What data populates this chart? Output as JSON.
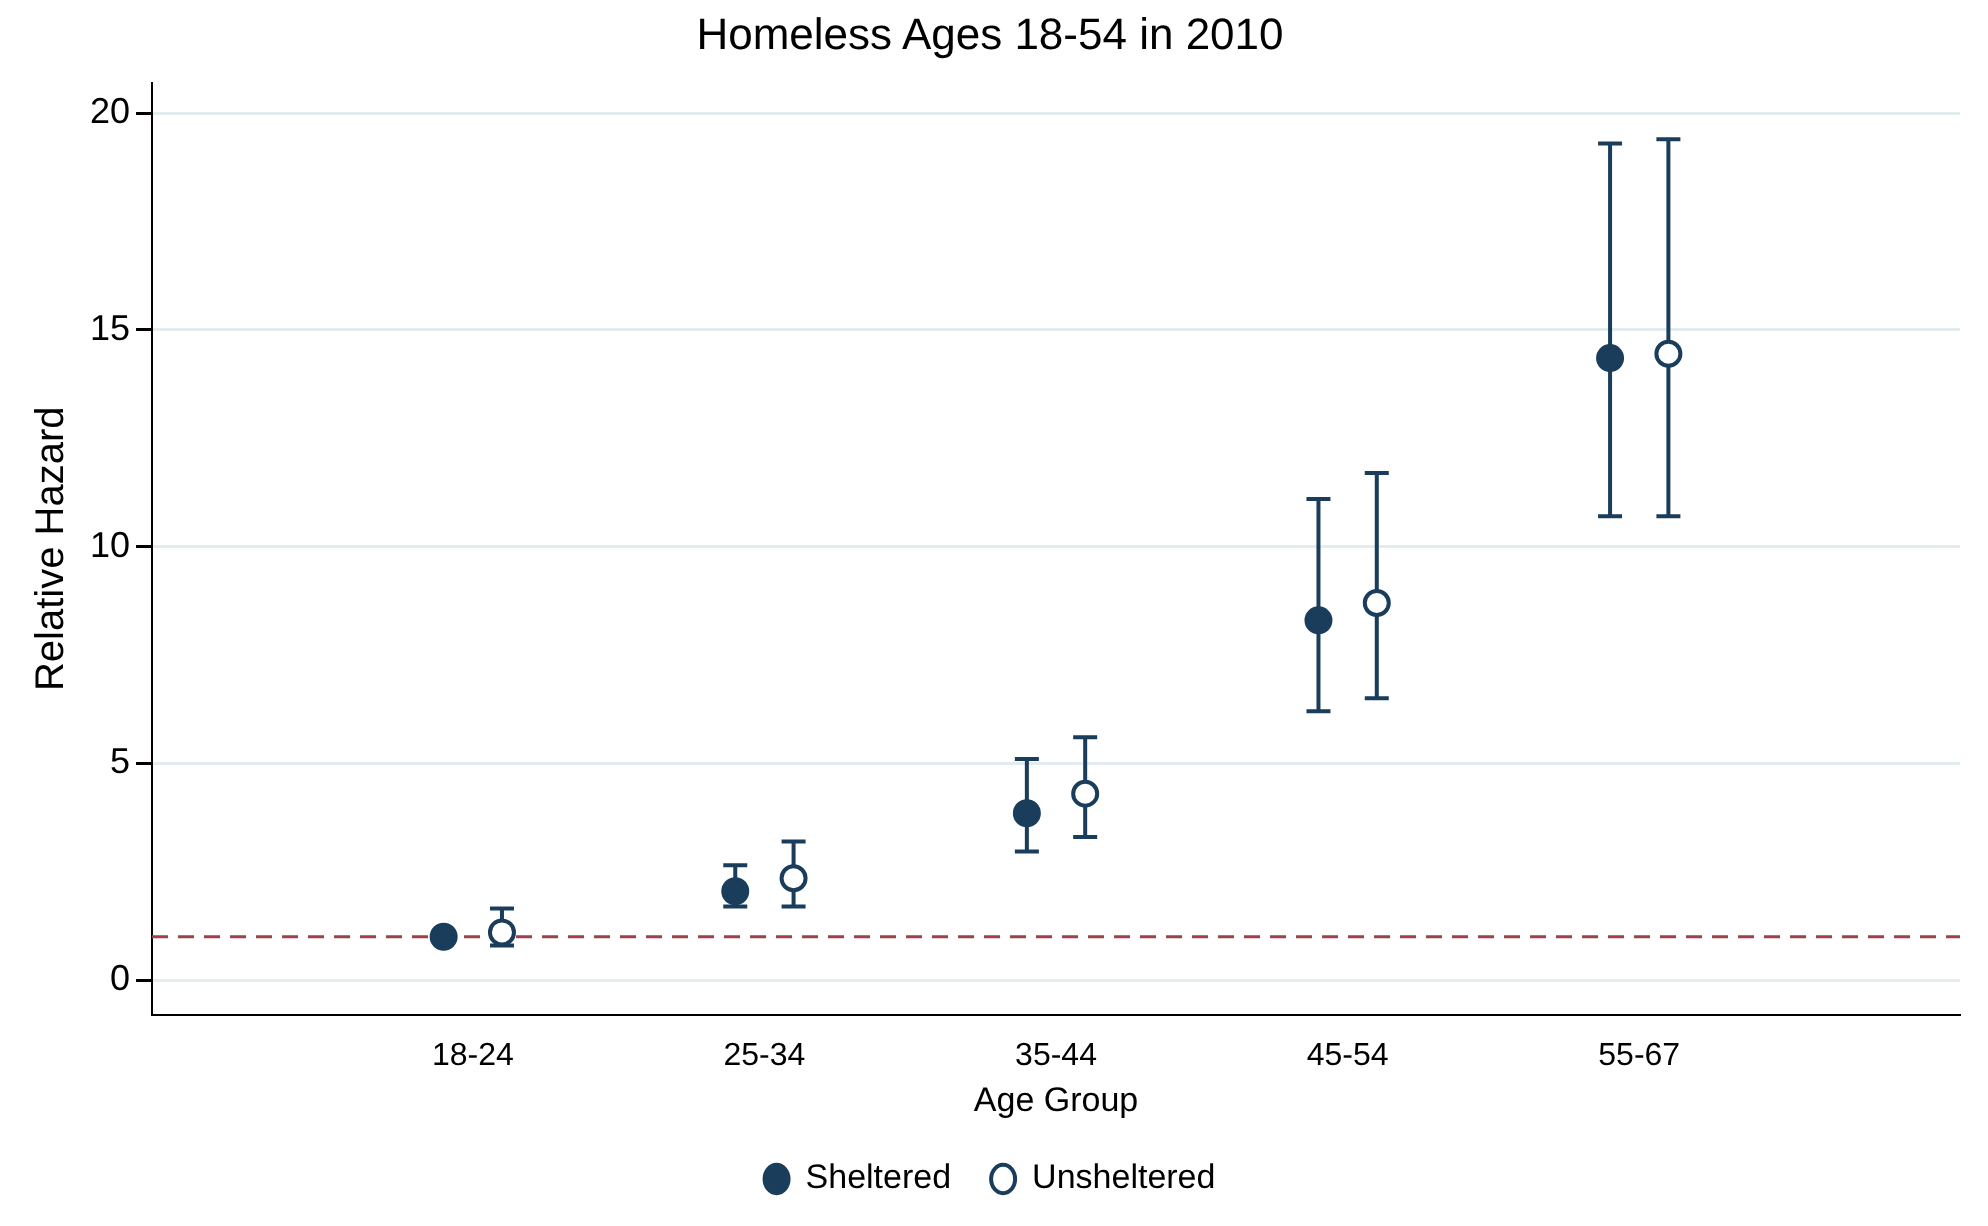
{
  "chart_data": {
    "type": "scatter",
    "title": "Homeless Ages 18-54 in 2010",
    "xlabel": "Age Group",
    "ylabel": "Relative Hazard",
    "categories": [
      "18-24",
      "25-34",
      "35-44",
      "45-54",
      "55-67"
    ],
    "ylim": [
      -0.8,
      20.7
    ],
    "yticks": [
      0,
      5,
      10,
      15,
      20
    ],
    "grid": "y",
    "legend": "bottom",
    "marker": "circle",
    "series": [
      {
        "name": "Sheltered",
        "color": "#1a3d5c",
        "values": [
          1,
          2.05,
          3.85,
          8.3,
          14.35
        ],
        "errors": [
          null,
          [
            1.7,
            2.65
          ],
          [
            2.97,
            5.1
          ],
          [
            6.2,
            11.1
          ],
          [
            10.7,
            19.3
          ]
        ]
      },
      {
        "name": "Unsheltered",
        "color": "#1a3d5c",
        "values": [
          1.1,
          2.35,
          4.3,
          8.7,
          14.45
        ],
        "errors": [
          [
            0.8,
            1.65
          ],
          [
            1.7,
            3.2
          ],
          [
            3.3,
            5.6
          ],
          [
            6.5,
            11.7
          ],
          [
            10.7,
            19.4
          ]
        ]
      }
    ],
    "ref_lines": [
      {
        "axis": "y",
        "value": 1,
        "color": "#a04048",
        "line_style": "dashed"
      }
    ]
  }
}
